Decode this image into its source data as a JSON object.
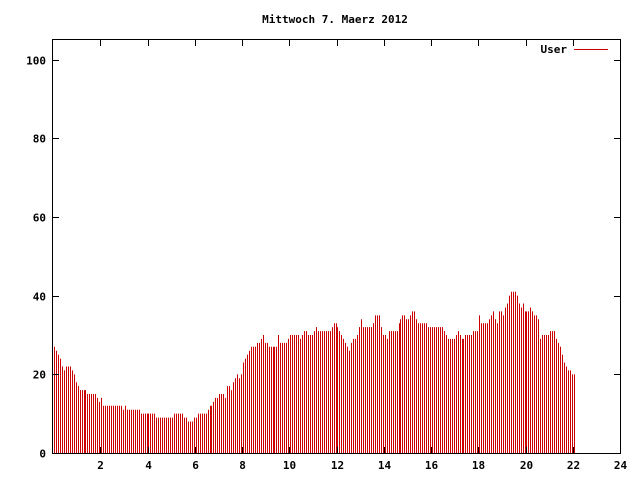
{
  "chart_data": {
    "type": "bar",
    "title": "Mittwoch 7. Maerz 2012",
    "xlabel": "",
    "ylabel": "",
    "xlim": [
      0,
      24
    ],
    "ylim": [
      0,
      105
    ],
    "x_ticks": [
      2,
      4,
      6,
      8,
      10,
      12,
      14,
      16,
      18,
      20,
      22,
      24
    ],
    "y_ticks": [
      0,
      20,
      40,
      60,
      80,
      100
    ],
    "grid": false,
    "legend_position": "top-right",
    "series": [
      {
        "name": "User",
        "color": "#cc0000",
        "x_start": 0,
        "x_step": 0.0833333,
        "values": [
          27,
          26,
          25,
          24,
          22,
          21,
          22,
          22,
          22,
          21,
          20,
          18,
          17,
          16,
          16,
          16,
          16,
          15,
          15,
          15,
          15,
          15,
          14,
          13,
          14,
          12,
          12,
          12,
          12,
          12,
          12,
          12,
          12,
          12,
          12,
          11,
          12,
          11,
          11,
          11,
          11,
          11,
          11,
          11,
          10,
          10,
          10,
          10,
          10,
          10,
          10,
          10,
          9,
          9,
          9,
          9,
          9,
          9,
          9,
          9,
          9,
          10,
          10,
          10,
          10,
          10,
          9,
          9,
          8,
          8,
          8,
          9,
          9,
          10,
          10,
          10,
          10,
          10,
          11,
          12,
          12,
          13,
          14,
          14,
          15,
          15,
          15,
          14,
          17,
          17,
          16,
          18,
          19,
          20,
          19,
          20,
          23,
          24,
          25,
          26,
          27,
          27,
          27,
          28,
          28,
          29,
          30,
          28,
          28,
          27,
          27,
          27,
          27,
          27,
          30,
          28,
          28,
          28,
          28,
          29,
          30,
          30,
          30,
          30,
          30,
          29,
          30,
          31,
          31,
          30,
          30,
          30,
          31,
          32,
          31,
          31,
          31,
          31,
          31,
          31,
          31,
          32,
          33,
          33,
          32,
          31,
          30,
          29,
          28,
          27,
          26,
          28,
          29,
          29,
          30,
          32,
          34,
          32,
          32,
          32,
          32,
          32,
          33,
          35,
          35,
          35,
          32,
          30,
          30,
          29,
          31,
          31,
          31,
          31,
          31,
          33,
          34,
          35,
          35,
          34,
          34,
          35,
          36,
          36,
          34,
          33,
          33,
          33,
          33,
          33,
          32,
          32,
          32,
          32,
          32,
          32,
          32,
          32,
          31,
          30,
          29,
          29,
          29,
          29,
          30,
          31,
          30,
          29,
          29,
          30,
          30,
          30,
          30,
          31,
          31,
          31,
          35,
          33,
          33,
          33,
          33,
          34,
          35,
          36,
          34,
          33,
          36,
          36,
          35,
          37,
          38,
          40,
          41,
          41,
          41,
          40,
          38,
          37,
          38,
          36,
          36,
          36,
          37,
          36,
          35,
          35,
          34,
          29,
          30,
          30,
          30,
          30,
          31,
          31,
          31,
          29,
          28,
          27,
          25,
          23,
          22,
          21,
          21,
          20,
          20
        ]
      }
    ],
    "colors": {
      "axis": "#000000",
      "bars": "#cc0000",
      "background": "#ffffff"
    }
  }
}
